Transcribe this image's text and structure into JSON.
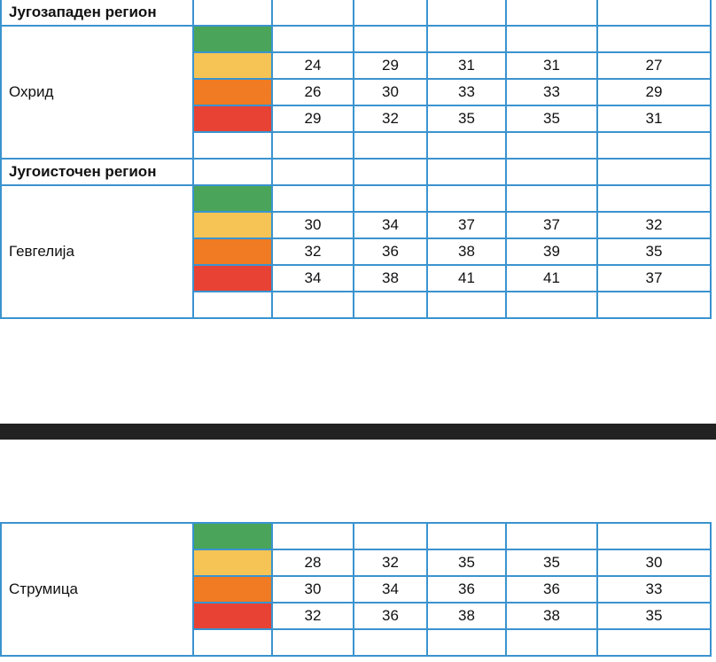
{
  "colors": {
    "green": "#4aa55a",
    "yellow": "#f6c454",
    "orange": "#f07b22",
    "red": "#e84235",
    "border": "#3a93cf",
    "divider": "#222222"
  },
  "section1": {
    "region_sw": "Југозападен регион",
    "ohrid": {
      "name": "Охрид",
      "yellow": [
        "24",
        "29",
        "31",
        "31",
        "27"
      ],
      "orange": [
        "26",
        "30",
        "33",
        "33",
        "29"
      ],
      "red": [
        "29",
        "32",
        "35",
        "35",
        "31"
      ]
    },
    "region_se": "Југоисточен регион",
    "gevgelija": {
      "name": "Гевгелија",
      "yellow": [
        "30",
        "34",
        "37",
        "37",
        "32"
      ],
      "orange": [
        "32",
        "36",
        "38",
        "39",
        "35"
      ],
      "red": [
        "34",
        "38",
        "41",
        "41",
        "37"
      ]
    }
  },
  "section2": {
    "strumica": {
      "name": "Струмица",
      "yellow": [
        "28",
        "32",
        "35",
        "35",
        "30"
      ],
      "orange": [
        "30",
        "34",
        "36",
        "36",
        "33"
      ],
      "red": [
        "32",
        "36",
        "38",
        "38",
        "35"
      ]
    }
  }
}
